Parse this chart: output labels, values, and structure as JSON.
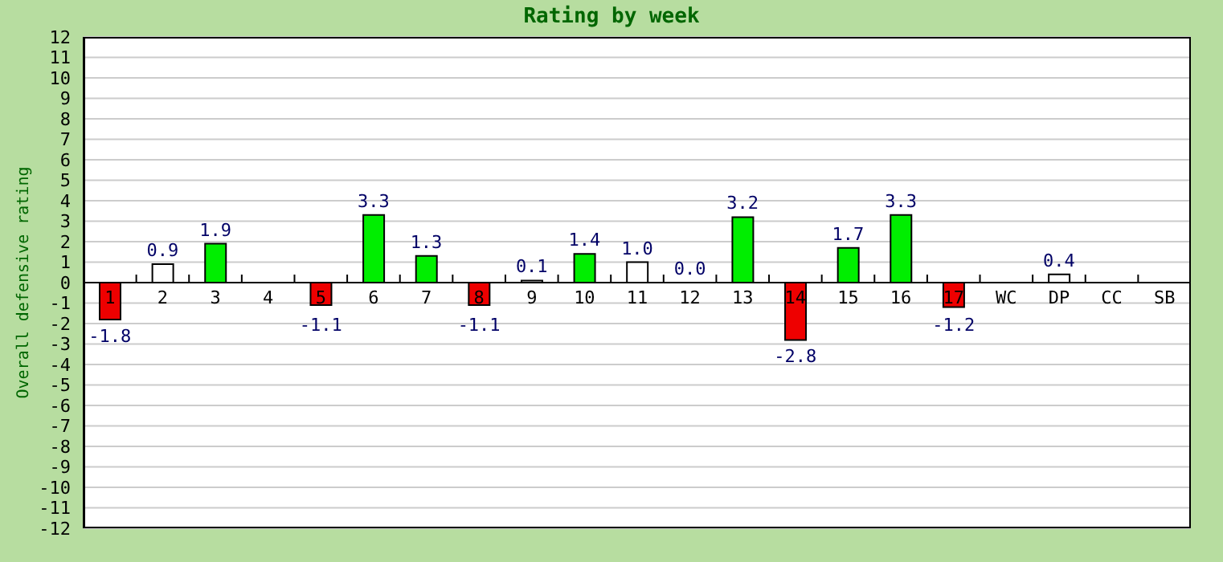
{
  "chart_data": {
    "type": "bar",
    "title": "Rating by week",
    "ylabel": "Overall defensive rating",
    "categories": [
      "1",
      "2",
      "3",
      "4",
      "5",
      "6",
      "7",
      "8",
      "9",
      "10",
      "11",
      "12",
      "13",
      "14",
      "15",
      "16",
      "17",
      "WC",
      "DP",
      "CC",
      "SB"
    ],
    "values": [
      -1.8,
      0.9,
      1.9,
      null,
      -1.1,
      3.3,
      1.3,
      -1.1,
      0.1,
      1.4,
      1.0,
      0.0,
      3.2,
      -2.8,
      1.7,
      3.3,
      -1.2,
      null,
      0.4,
      null,
      null
    ],
    "value_labels": [
      "-1.8",
      "0.9",
      "1.9",
      null,
      "-1.1",
      "3.3",
      "1.3",
      "-1.1",
      "0.1",
      "1.4",
      "1.0",
      "0.0",
      "3.2",
      "-2.8",
      "1.7",
      "3.3",
      "-1.2",
      null,
      "0.4",
      null,
      null
    ],
    "colors": [
      "#ee0000",
      "#ffffff",
      "#00ee00",
      null,
      "#ee0000",
      "#00ee00",
      "#00ee00",
      "#ee0000",
      "#ffffff",
      "#00ee00",
      "#ffffff",
      "#ffffff",
      "#00ee00",
      "#ee0000",
      "#00ee00",
      "#00ee00",
      "#ee0000",
      null,
      "#ffffff",
      null,
      null
    ],
    "ylim": [
      -12,
      12
    ],
    "yticks": [
      -12,
      -11,
      -10,
      -9,
      -8,
      -7,
      -6,
      -5,
      -4,
      -3,
      -2,
      -1,
      0,
      1,
      2,
      3,
      4,
      5,
      6,
      7,
      8,
      9,
      10,
      11,
      12
    ],
    "grid": "y",
    "legend": false
  }
}
